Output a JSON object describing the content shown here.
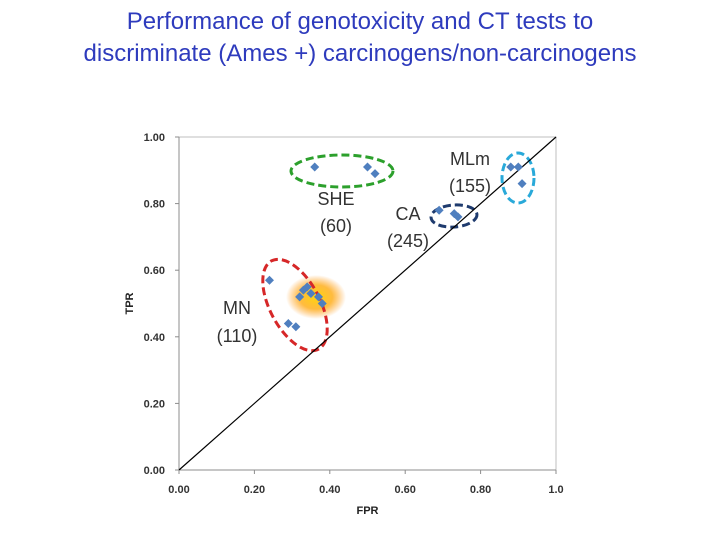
{
  "title": {
    "line1": "Performance of genotoxicity and CT tests to",
    "line2": "discriminate (Ames +) carcinogens/non-carcinogens"
  },
  "colors": {
    "title": "#2e3bbd",
    "marker": "#4f7fbf",
    "diagonal": "#000000",
    "mn_ellipse": "#d62728",
    "she_ellipse": "#2ca02c",
    "ca_ellipse": "#1f3b6e",
    "mlm_ellipse": "#29a9d9",
    "highlight_glow": "#ffa500"
  },
  "chart_data": {
    "type": "scatter",
    "title": "",
    "xlabel": "FPR",
    "ylabel": "TPR",
    "xlim": [
      0,
      1
    ],
    "ylim": [
      0,
      1
    ],
    "grid": false,
    "legend": "none",
    "x_ticks": [
      "0.00",
      "0.20",
      "0.40",
      "0.60",
      "0.80",
      "1.0"
    ],
    "y_ticks": [
      "0.00",
      "0.20",
      "0.40",
      "0.60",
      "0.80",
      "1.00"
    ],
    "diagonal": [
      [
        0,
        0
      ],
      [
        1,
        1
      ]
    ],
    "groups": [
      {
        "id": "MN",
        "label_name": "MN",
        "label_count": "(110)",
        "points": [
          [
            0.24,
            0.57
          ],
          [
            0.33,
            0.54
          ],
          [
            0.34,
            0.55
          ],
          [
            0.35,
            0.53
          ],
          [
            0.32,
            0.52
          ],
          [
            0.37,
            0.52
          ],
          [
            0.38,
            0.5
          ],
          [
            0.29,
            0.44
          ],
          [
            0.31,
            0.43
          ]
        ]
      },
      {
        "id": "SHE",
        "label_name": "SHE",
        "label_count": "(60)",
        "points": [
          [
            0.36,
            0.91
          ],
          [
            0.5,
            0.91
          ],
          [
            0.52,
            0.89
          ]
        ]
      },
      {
        "id": "CA",
        "label_name": "CA",
        "label_count": "(245)",
        "points": [
          [
            0.69,
            0.78
          ],
          [
            0.73,
            0.77
          ],
          [
            0.74,
            0.76
          ]
        ]
      },
      {
        "id": "MLm",
        "label_name": "MLm",
        "label_count": "(155)",
        "points": [
          [
            0.88,
            0.91
          ],
          [
            0.9,
            0.91
          ],
          [
            0.91,
            0.86
          ]
        ]
      }
    ]
  }
}
